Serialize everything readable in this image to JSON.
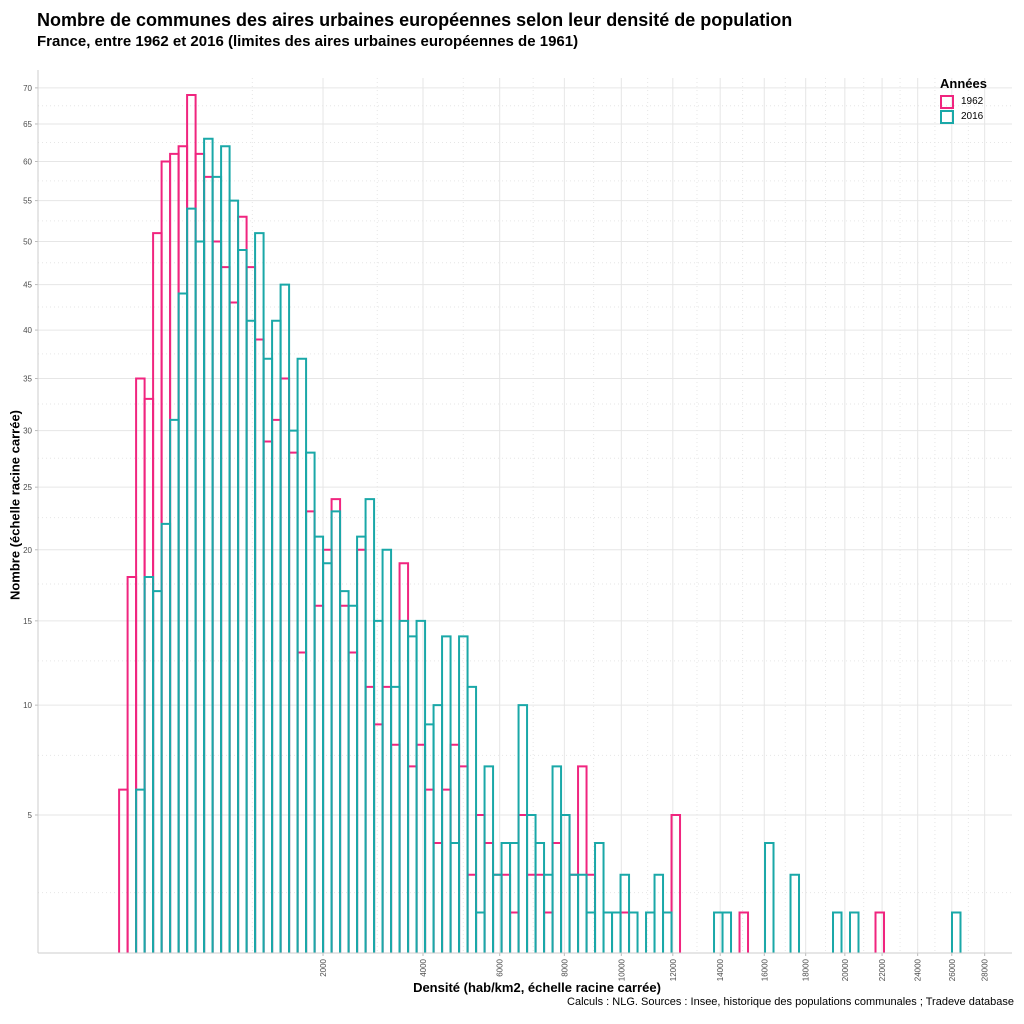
{
  "title": "Nombre de communes des aires urbaines européennes selon leur densité de population",
  "subtitle": "France, entre 1962 et 2016 (limites des aires urbaines européennes de 1961)",
  "caption": "Calculs : NLG. Sources : Insee, historique des populations communales ; Tradeve database",
  "colors": {
    "1962": "#f0257f",
    "2016": "#1aa8a8",
    "grid": "#e6e6e6"
  },
  "chart_data": {
    "type": "histogram-step (bar outlines)",
    "title": "Nombre de communes des aires urbaines européennes selon leur densité de population",
    "subtitle": "France, entre 1962 et 2016 (limites des aires urbaines européennes de 1961)",
    "xlabel": "Densité (hab/km2, échelle racine carrée)",
    "ylabel": "Nombre (échelle racine carrée)",
    "x_scale": "sqrt",
    "y_scale": "sqrt",
    "xlim_sqrt": [
      -8.1,
      172.4
    ],
    "ylim": [
      1.15,
      71.4
    ],
    "x_ticks": [
      2000,
      4000,
      6000,
      8000,
      10000,
      12000,
      14000,
      16000,
      18000,
      20000,
      22000,
      24000,
      26000,
      28000
    ],
    "x_tick_labels": [
      "2000",
      "4000",
      "6000",
      "8000",
      "10000",
      "12000",
      "14000",
      "16000",
      "18000",
      "20000",
      "22000",
      "24000",
      "26000",
      "28000"
    ],
    "y_ticks": [
      5,
      10,
      15,
      20,
      25,
      30,
      35,
      40,
      45,
      50,
      55,
      60,
      65,
      70
    ],
    "y_tick_labels": [
      "5",
      "10",
      "15",
      "20",
      "25",
      "30",
      "35",
      "40",
      "45",
      "50",
      "55",
      "60",
      "65",
      "70"
    ],
    "grid": true,
    "legend": {
      "title": "Années",
      "position": "top-right",
      "entries": [
        "1962",
        "2016"
      ]
    },
    "bin_start_sqrt": 6.93,
    "bin_width_sqrt": 1.575,
    "series": [
      {
        "name": "1962",
        "values": [
          6,
          18,
          35,
          33,
          51,
          60,
          61,
          62,
          69,
          61,
          58,
          50,
          47,
          43,
          53,
          47,
          39,
          29,
          31,
          35,
          28,
          13,
          23,
          16,
          20,
          24,
          16,
          13,
          20,
          11,
          9,
          11,
          8,
          19,
          7,
          8,
          6,
          4,
          6,
          8,
          7,
          3,
          5,
          4,
          3,
          3,
          2,
          5,
          3,
          3,
          2,
          4,
          5,
          3,
          7,
          3,
          0,
          0,
          0,
          2,
          0,
          0,
          0,
          0,
          0,
          5,
          0,
          0,
          0,
          0,
          0,
          0,
          0,
          2,
          0,
          0,
          0,
          0,
          0,
          0,
          0,
          0,
          0,
          0,
          0,
          0,
          0,
          0,
          0,
          2,
          0,
          0,
          0,
          0,
          0,
          0,
          0,
          0,
          0
        ]
      },
      {
        "name": "2016",
        "values": [
          0,
          0,
          6,
          18,
          17,
          22,
          31,
          44,
          54,
          50,
          63,
          58,
          62,
          55,
          49,
          41,
          51,
          37,
          41,
          45,
          30,
          37,
          28,
          21,
          19,
          23,
          17,
          16,
          21,
          24,
          15,
          20,
          11,
          15,
          14,
          15,
          9,
          10,
          14,
          4,
          14,
          11,
          2,
          7,
          3,
          4,
          4,
          10,
          5,
          4,
          3,
          7,
          5,
          3,
          3,
          2,
          4,
          2,
          2,
          3,
          2,
          0,
          2,
          3,
          2,
          0,
          0,
          0,
          0,
          0,
          2,
          2,
          0,
          0,
          0,
          0,
          4,
          0,
          0,
          3,
          0,
          0,
          0,
          0,
          2,
          0,
          2,
          0,
          0,
          0,
          0,
          0,
          0,
          0,
          0,
          0,
          0,
          0,
          2
        ]
      }
    ]
  }
}
